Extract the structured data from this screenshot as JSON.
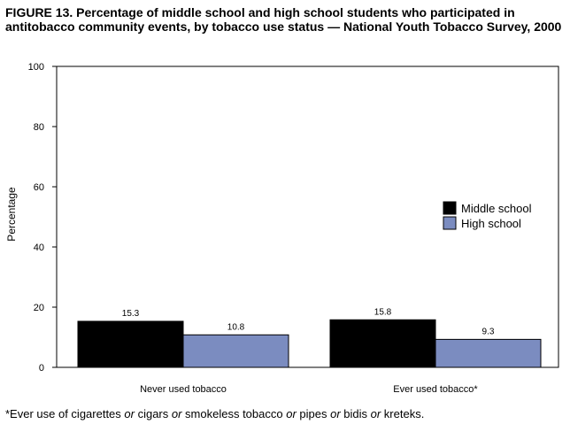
{
  "chart_data": {
    "type": "bar",
    "title": "FIGURE 13. Percentage of middle school and high school students who participated in antitobacco  community events, by tobacco use status — National Youth Tobacco Survey, 2000",
    "ylabel": "Percentage",
    "xlabel": "",
    "categories": [
      "Never used tobacco",
      "Ever used tobacco*"
    ],
    "series": [
      {
        "name": "Middle school",
        "values": [
          15.3,
          15.8
        ],
        "color": "#000000"
      },
      {
        "name": "High school",
        "values": [
          10.8,
          9.3
        ],
        "color": "#7b8cc0"
      }
    ],
    "ylim": [
      0,
      100
    ],
    "yticks": [
      0,
      20,
      40,
      60,
      80,
      100
    ],
    "grid": false,
    "legend": "right"
  },
  "footnote": {
    "parts": [
      {
        "text": "*Ever use of cigarettes ",
        "italic": false
      },
      {
        "text": "or",
        "italic": true
      },
      {
        "text": " cigars ",
        "italic": false
      },
      {
        "text": "or",
        "italic": true
      },
      {
        "text": " smokeless tobacco ",
        "italic": false
      },
      {
        "text": "or",
        "italic": true
      },
      {
        "text": " pipes ",
        "italic": false
      },
      {
        "text": "or",
        "italic": true
      },
      {
        "text": " bidis ",
        "italic": false
      },
      {
        "text": "or",
        "italic": true
      },
      {
        "text": " kreteks.",
        "italic": false
      }
    ]
  }
}
